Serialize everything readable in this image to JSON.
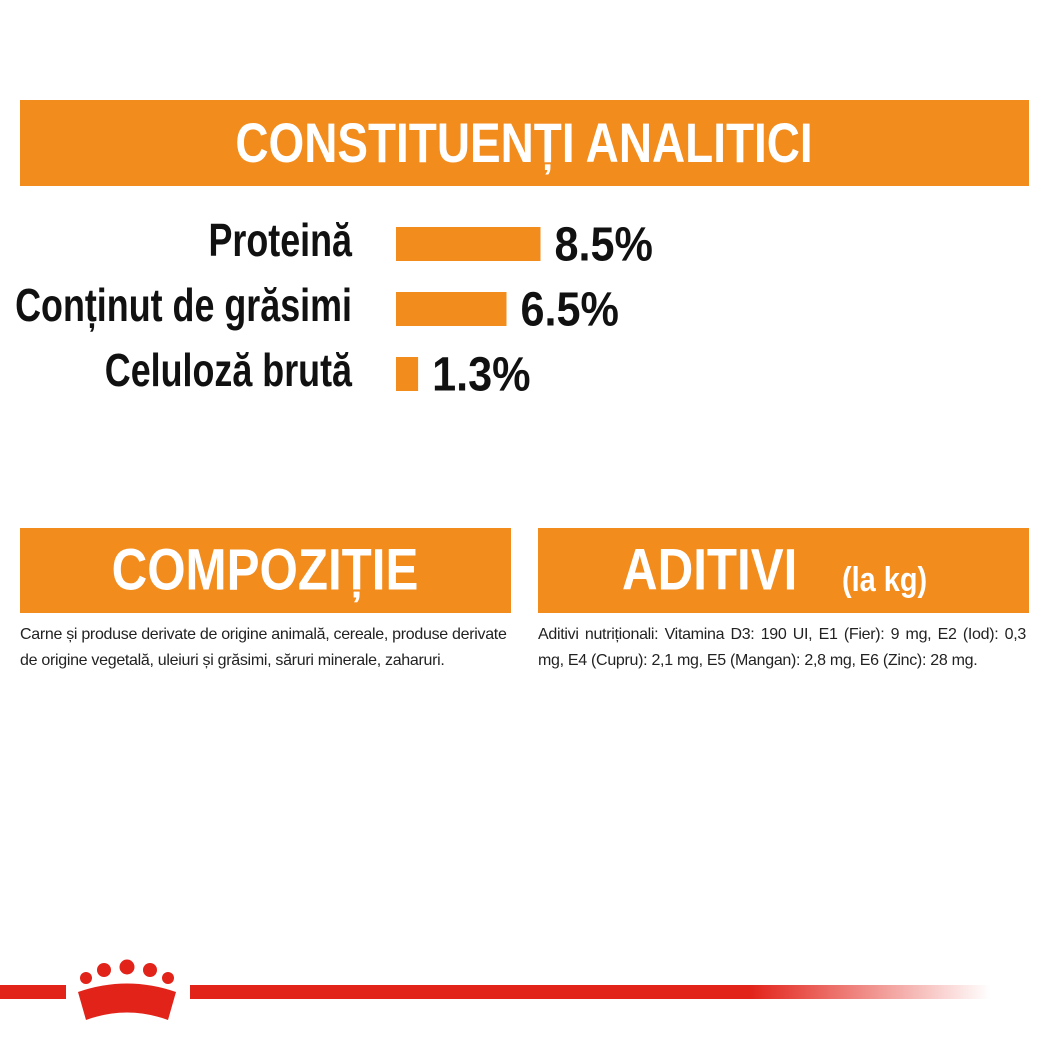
{
  "chart_data": {
    "type": "bar",
    "title": "CONSTITUENȚI ANALITICI",
    "categories": [
      "Proteină",
      "Conținut de grăsimi",
      "Celuloză brută"
    ],
    "values": [
      8.5,
      6.5,
      1.3
    ],
    "value_labels": [
      "8.5%",
      "6.5%",
      "1.3%"
    ],
    "color": "#f28c1c"
  },
  "composition": {
    "title": "COMPOZIȚIE",
    "text": "Carne și produse derivate de origine animală, cereale, produse derivate de origine vegetală, uleiuri și grăsimi, săruri minerale, zaharuri."
  },
  "additives": {
    "title": "ADITIVI",
    "subtitle": "(la kg)",
    "text": "Aditivi nutriționali: Vitamina D3: 190 UI, E1 (Fier): 9 mg, E2 (Iod): 0,3 mg, E4 (Cupru): 2,1 mg, E5 (Mangan): 2,8 mg, E6 (Zinc): 28 mg."
  }
}
